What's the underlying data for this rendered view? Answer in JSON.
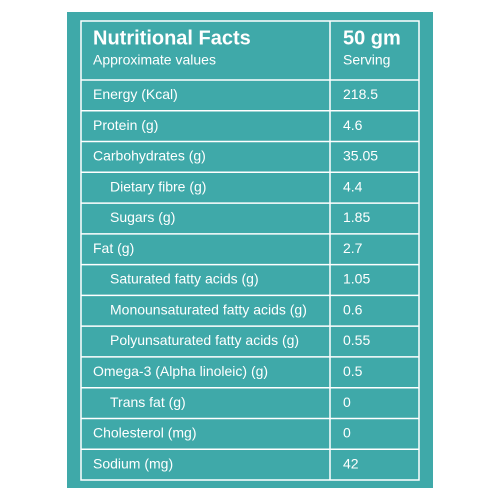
{
  "header": {
    "title": "Nutritional Facts",
    "subtitle": "Approximate values",
    "amount": "50 gm",
    "amount_label": "Serving"
  },
  "table": {
    "rows": [
      {
        "label": "Energy (Kcal)",
        "value": 218.5
      },
      {
        "label": "Protein (g)",
        "value": 4.6
      },
      {
        "label": "Carbohydrates (g)",
        "value": 35.05,
        "children": [
          {
            "label": "Dietary fibre (g)",
            "value": 4.4
          },
          {
            "label": "Sugars (g)",
            "value": 1.85
          }
        ]
      },
      {
        "label": "Fat (g)",
        "value": 2.7,
        "children": [
          {
            "label": "Saturated fatty acids (g)",
            "value": 1.05
          },
          {
            "label": "Monounsaturated fatty acids (g)",
            "value": 0.6
          },
          {
            "label": "Polyunsaturated fatty acids (g)",
            "value": 0.55
          }
        ]
      },
      {
        "label": "Omega-3 (Alpha linoleic) (g)",
        "value": 0.5,
        "children": [
          {
            "label": "Trans fat (g)",
            "value": 0
          }
        ]
      },
      {
        "label": "Cholesterol (mg)",
        "value": 0
      },
      {
        "label": "Sodium (mg)",
        "value": 42
      }
    ]
  }
}
